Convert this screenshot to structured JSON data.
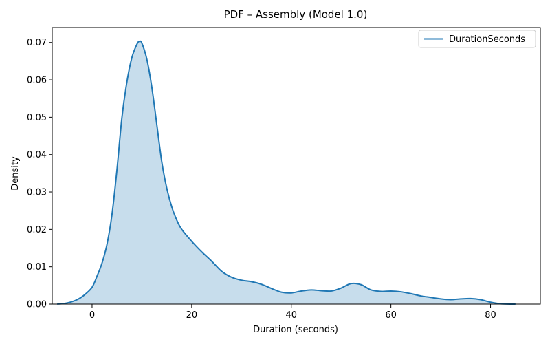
{
  "chart_data": {
    "type": "area",
    "title": "PDF – Assembly (Model 1.0)",
    "xlabel": "Duration (seconds)",
    "ylabel": "Density",
    "xlim": [
      -8,
      90
    ],
    "ylim": [
      0,
      0.074
    ],
    "xticks": [
      0,
      20,
      40,
      60,
      80
    ],
    "yticks": [
      0.0,
      0.01,
      0.02,
      0.03,
      0.04,
      0.05,
      0.06,
      0.07
    ],
    "xtick_labels": [
      "0",
      "20",
      "40",
      "60",
      "80"
    ],
    "ytick_labels": [
      "0.00",
      "0.01",
      "0.02",
      "0.03",
      "0.04",
      "0.05",
      "0.06",
      "0.07"
    ],
    "grid": false,
    "legend_position": "top-right",
    "series": [
      {
        "name": "DurationSeconds",
        "color": "#1f77b4",
        "fill_color": "#1f77b4",
        "fill_opacity": 0.25,
        "x": [
          -7.0,
          -5.0,
          -3.0,
          -1.5,
          0.0,
          1.0,
          2.0,
          3.0,
          4.0,
          5.0,
          6.0,
          7.0,
          8.0,
          9.0,
          9.5,
          10.0,
          11.0,
          12.0,
          13.0,
          14.0,
          15.0,
          16.0,
          17.0,
          18.0,
          20.0,
          22.0,
          24.0,
          26.0,
          28.0,
          30.0,
          32.0,
          34.0,
          36.0,
          38.0,
          40.0,
          42.0,
          44.0,
          46.0,
          48.0,
          50.0,
          52.0,
          54.0,
          56.0,
          58.0,
          60.0,
          62.0,
          64.0,
          66.0,
          68.0,
          70.0,
          72.0,
          74.0,
          76.0,
          78.0,
          80.0,
          82.0,
          85.0
        ],
        "y": [
          0.0,
          0.0003,
          0.0012,
          0.0025,
          0.0045,
          0.0075,
          0.011,
          0.016,
          0.024,
          0.036,
          0.05,
          0.0595,
          0.066,
          0.0695,
          0.0703,
          0.0698,
          0.0655,
          0.058,
          0.048,
          0.038,
          0.031,
          0.026,
          0.0225,
          0.02,
          0.0168,
          0.014,
          0.0115,
          0.0088,
          0.0072,
          0.0064,
          0.006,
          0.0053,
          0.0042,
          0.0032,
          0.003,
          0.0035,
          0.0038,
          0.0036,
          0.0035,
          0.0043,
          0.0055,
          0.0052,
          0.0038,
          0.0034,
          0.0035,
          0.0033,
          0.0028,
          0.0022,
          0.0018,
          0.0014,
          0.0012,
          0.0014,
          0.0015,
          0.0012,
          0.0005,
          0.0001,
          0.0
        ]
      }
    ]
  }
}
